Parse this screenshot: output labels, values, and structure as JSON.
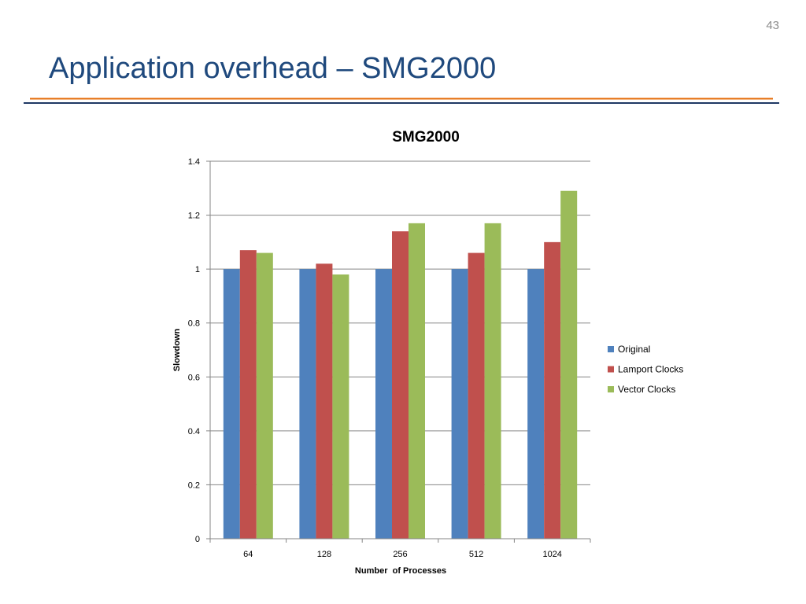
{
  "slide": {
    "page_number": "43",
    "title": "Application overhead – SMG2000",
    "colors": {
      "title": "#1f497d",
      "rule_blue": "#1f3864",
      "rule_orange": "#e46c0a"
    }
  },
  "chart_data": {
    "type": "bar",
    "title": "SMG2000",
    "xlabel": "Number  of Processes",
    "ylabel": "Slowdown",
    "categories": [
      "64",
      "128",
      "256",
      "512",
      "1024"
    ],
    "series": [
      {
        "name": "Original",
        "color": "#4f81bd",
        "values": [
          1.0,
          1.0,
          1.0,
          1.0,
          1.0
        ]
      },
      {
        "name": "Lamport Clocks",
        "color": "#c0504d",
        "values": [
          1.07,
          1.02,
          1.14,
          1.06,
          1.1
        ]
      },
      {
        "name": "Vector Clocks",
        "color": "#9bbb59",
        "values": [
          1.06,
          0.98,
          1.17,
          1.17,
          1.29
        ]
      }
    ],
    "ylim": [
      0,
      1.4
    ],
    "yticks": [
      "0",
      "0.2",
      "0.4",
      "0.6",
      "0.8",
      "1",
      "1.2",
      "1.4"
    ],
    "grid": true,
    "legend_position": "right"
  }
}
